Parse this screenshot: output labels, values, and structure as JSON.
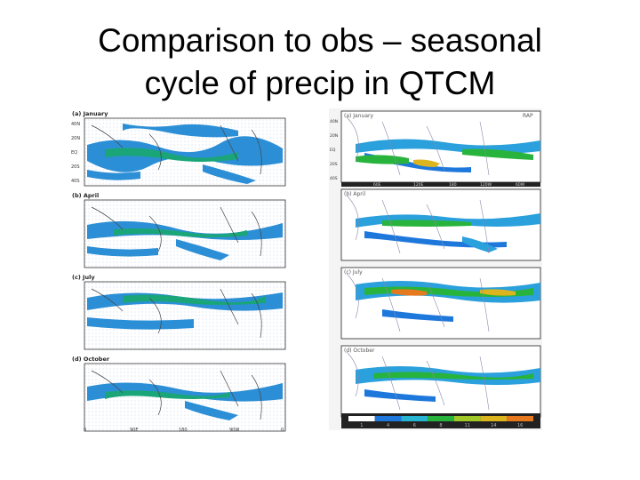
{
  "slide": {
    "title_line1": "Comparison to obs – seasonal",
    "title_line2": "cycle of precip in QTCM"
  },
  "left_figure": {
    "panels": [
      {
        "label": "(a) January"
      },
      {
        "label": "(b) April"
      },
      {
        "label": "(c) July"
      },
      {
        "label": "(d) October"
      }
    ],
    "lat_ticks": [
      "40N",
      "20N",
      "EQ",
      "20S",
      "40S"
    ],
    "lon_ticks": [
      "0",
      "90E",
      "180",
      "90W",
      "0"
    ]
  },
  "right_figure": {
    "panels": [
      {
        "label": "(a) January",
        "tag": "RAP"
      },
      {
        "label": "(b) April",
        "tag": ""
      },
      {
        "label": "(c) July",
        "tag": ""
      },
      {
        "label": "(d) October",
        "tag": ""
      }
    ],
    "lat_ticks": [
      "40N",
      "20N",
      "EQ",
      "20S",
      "40S"
    ],
    "lon_ticks": [
      "60E",
      "120E",
      "180",
      "120W",
      "60W"
    ],
    "colorbar_ticks": [
      "1",
      "4",
      "6",
      "8",
      "11",
      "14",
      "16"
    ],
    "colorbar_colors": [
      "#ffffff",
      "#1e78dc",
      "#25b4d2",
      "#28b43c",
      "#a0c828",
      "#dcb41e",
      "#e6781e"
    ]
  }
}
